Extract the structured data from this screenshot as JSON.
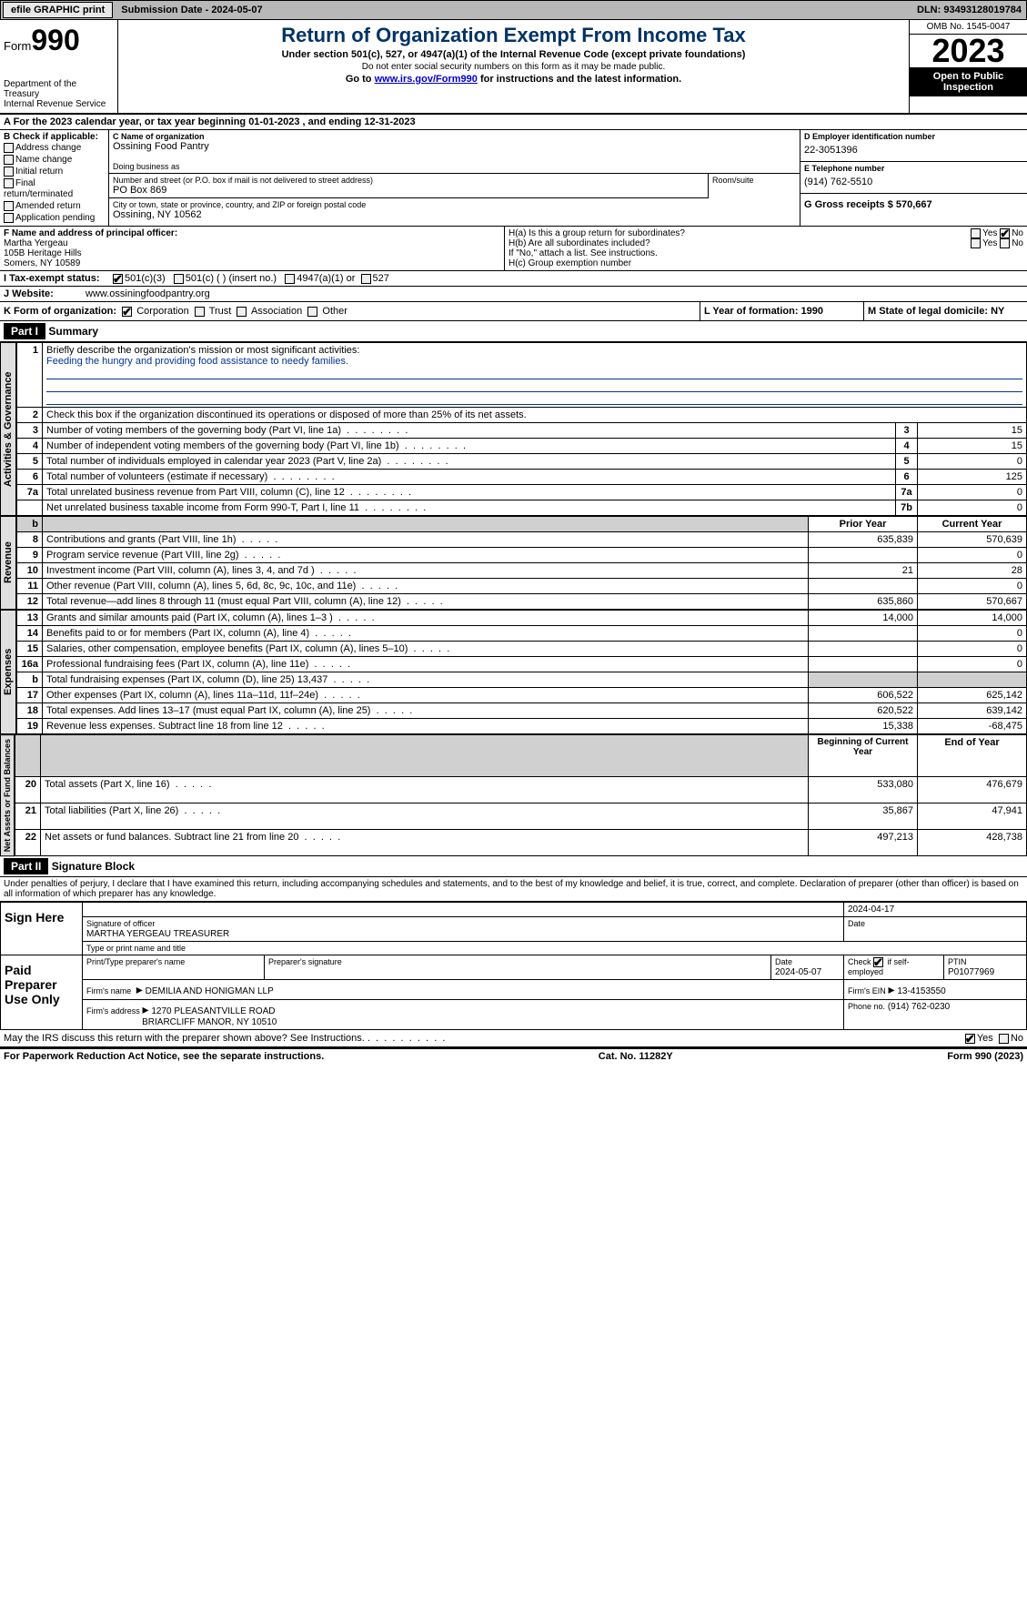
{
  "topbar": {
    "efile": "efile GRAPHIC print",
    "submission": "Submission Date - 2024-05-07",
    "dln": "DLN: 93493128019784"
  },
  "header": {
    "form_prefix": "Form",
    "form_num": "990",
    "dept": "Department of the Treasury",
    "irs": "Internal Revenue Service",
    "title": "Return of Organization Exempt From Income Tax",
    "sub1": "Under section 501(c), 527, or 4947(a)(1) of the Internal Revenue Code (except private foundations)",
    "sub2": "Do not enter social security numbers on this form as it may be made public.",
    "sub3_pre": "Go to ",
    "sub3_link": "www.irs.gov/Form990",
    "sub3_post": " for instructions and the latest information.",
    "omb": "OMB No. 1545-0047",
    "year": "2023",
    "inspect1": "Open to Public",
    "inspect2": "Inspection"
  },
  "line_a": "A For the 2023 calendar year, or tax year beginning 01-01-2023   , and ending 12-31-2023",
  "section_b": {
    "title": "B Check if applicable:",
    "items": [
      "Address change",
      "Name change",
      "Initial return",
      "Final return/terminated",
      "Amended return",
      "Application pending"
    ]
  },
  "section_c": {
    "name_label": "C Name of organization",
    "name": "Ossining Food Pantry",
    "dba_label": "Doing business as",
    "dba": "",
    "addr_label": "Number and street (or P.O. box if mail is not delivered to street address)",
    "addr": "PO Box 869",
    "room_label": "Room/suite",
    "city_label": "City or town, state or province, country, and ZIP or foreign postal code",
    "city": "Ossining, NY  10562"
  },
  "section_d": {
    "label": "D Employer identification number",
    "val": "22-3051396"
  },
  "section_e": {
    "label": "E Telephone number",
    "val": "(914) 762-5510"
  },
  "section_g": {
    "label": "G Gross receipts $ 570,667"
  },
  "section_f": {
    "label": "F  Name and address of principal officer:",
    "name": "Martha Yergeau",
    "addr1": "105B Heritage Hills",
    "addr2": "Somers, NY  10589"
  },
  "section_h": {
    "ha": "H(a)  Is this a group return for subordinates?",
    "hb": "H(b)  Are all subordinates included?",
    "hb_note": "If \"No,\" attach a list. See instructions.",
    "hc": "H(c)  Group exemption number",
    "yes": "Yes",
    "no": "No"
  },
  "section_i": {
    "label": "I  Tax-exempt status:",
    "opt1": "501(c)(3)",
    "opt2": "501(c) (  ) (insert no.)",
    "opt3": "4947(a)(1) or",
    "opt4": "527"
  },
  "section_j": {
    "label": "J  Website:",
    "val": "www.ossiningfoodpantry.org"
  },
  "section_k": {
    "label": "K Form of organization:",
    "opts": [
      "Corporation",
      "Trust",
      "Association",
      "Other"
    ]
  },
  "section_l": {
    "label": "L Year of formation: 1990"
  },
  "section_m": {
    "label": "M State of legal domicile: NY"
  },
  "part1": {
    "header": "Part I",
    "title": "Summary",
    "line1_label": "Briefly describe the organization's mission or most significant activities:",
    "line1_val": "Feeding the hungry and providing food assistance to needy families.",
    "line2": "Check this box      if the organization discontinued its operations or disposed of more than 25% of its net assets.",
    "rows_gov": [
      {
        "n": "3",
        "t": "Number of voting members of the governing body (Part VI, line 1a)",
        "l": "3",
        "v": "15"
      },
      {
        "n": "4",
        "t": "Number of independent voting members of the governing body (Part VI, line 1b)",
        "l": "4",
        "v": "15"
      },
      {
        "n": "5",
        "t": "Total number of individuals employed in calendar year 2023 (Part V, line 2a)",
        "l": "5",
        "v": "0"
      },
      {
        "n": "6",
        "t": "Total number of volunteers (estimate if necessary)",
        "l": "6",
        "v": "125"
      },
      {
        "n": "7a",
        "t": "Total unrelated business revenue from Part VIII, column (C), line 12",
        "l": "7a",
        "v": "0"
      },
      {
        "n": "",
        "t": "Net unrelated business taxable income from Form 990-T, Part I, line 11",
        "l": "7b",
        "v": "0"
      }
    ],
    "col_prior": "Prior Year",
    "col_current": "Current Year",
    "rows_rev": [
      {
        "n": "8",
        "t": "Contributions and grants (Part VIII, line 1h)",
        "p": "635,839",
        "c": "570,639"
      },
      {
        "n": "9",
        "t": "Program service revenue (Part VIII, line 2g)",
        "p": "",
        "c": "0"
      },
      {
        "n": "10",
        "t": "Investment income (Part VIII, column (A), lines 3, 4, and 7d )",
        "p": "21",
        "c": "28"
      },
      {
        "n": "11",
        "t": "Other revenue (Part VIII, column (A), lines 5, 6d, 8c, 9c, 10c, and 11e)",
        "p": "",
        "c": "0"
      },
      {
        "n": "12",
        "t": "Total revenue—add lines 8 through 11 (must equal Part VIII, column (A), line 12)",
        "p": "635,860",
        "c": "570,667"
      }
    ],
    "rows_exp": [
      {
        "n": "13",
        "t": "Grants and similar amounts paid (Part IX, column (A), lines 1–3 )",
        "p": "14,000",
        "c": "14,000"
      },
      {
        "n": "14",
        "t": "Benefits paid to or for members (Part IX, column (A), line 4)",
        "p": "",
        "c": "0"
      },
      {
        "n": "15",
        "t": "Salaries, other compensation, employee benefits (Part IX, column (A), lines 5–10)",
        "p": "",
        "c": "0"
      },
      {
        "n": "16a",
        "t": "Professional fundraising fees (Part IX, column (A), line 11e)",
        "p": "",
        "c": "0"
      },
      {
        "n": "b",
        "t": "Total fundraising expenses (Part IX, column (D), line 25) 13,437",
        "p": "SHADED",
        "c": "SHADED"
      },
      {
        "n": "17",
        "t": "Other expenses (Part IX, column (A), lines 11a–11d, 11f–24e)",
        "p": "606,522",
        "c": "625,142"
      },
      {
        "n": "18",
        "t": "Total expenses. Add lines 13–17 (must equal Part IX, column (A), line 25)",
        "p": "620,522",
        "c": "639,142"
      },
      {
        "n": "19",
        "t": "Revenue less expenses. Subtract line 18 from line 12",
        "p": "15,338",
        "c": "-68,475"
      }
    ],
    "col_begin": "Beginning of Current Year",
    "col_end": "End of Year",
    "rows_net": [
      {
        "n": "20",
        "t": "Total assets (Part X, line 16)",
        "p": "533,080",
        "c": "476,679"
      },
      {
        "n": "21",
        "t": "Total liabilities (Part X, line 26)",
        "p": "35,867",
        "c": "47,941"
      },
      {
        "n": "22",
        "t": "Net assets or fund balances. Subtract line 21 from line 20",
        "p": "497,213",
        "c": "428,738"
      }
    ],
    "vlabels": [
      "Activities & Governance",
      "Revenue",
      "Expenses",
      "Net Assets or Fund Balances"
    ]
  },
  "part2": {
    "header": "Part II",
    "title": "Signature Block",
    "declaration": "Under penalties of perjury, I declare that I have examined this return, including accompanying schedules and statements, and to the best of my knowledge and belief, it is true, correct, and complete. Declaration of preparer (other than officer) is based on all information of which preparer has any knowledge.",
    "sign_here": "Sign Here",
    "sig_date": "2024-04-17",
    "sig_officer": "Signature of officer",
    "sig_name": "MARTHA YERGEAU  TREASURER",
    "sig_type": "Type or print name and title",
    "date_label": "Date",
    "paid_prep": "Paid Preparer Use Only",
    "prep_name_label": "Print/Type preparer's name",
    "prep_sig_label": "Preparer's signature",
    "prep_date_label": "Date",
    "prep_date": "2024-05-07",
    "check_self": "Check         if self-employed",
    "ptin_label": "PTIN",
    "ptin": "P01077969",
    "firm_name_label": "Firm's name",
    "firm_name": "DEMILIA AND HONIGMAN LLP",
    "firm_ein_label": "Firm's EIN",
    "firm_ein": "13-4153550",
    "firm_addr_label": "Firm's address",
    "firm_addr1": "1270 PLEASANTVILLE ROAD",
    "firm_addr2": "BRIARCLIFF MANOR, NY  10510",
    "phone_label": "Phone no.",
    "phone": "(914) 762-0230",
    "discuss": "May the IRS discuss this return with the preparer shown above? See Instructions.",
    "yes": "Yes",
    "no": "No"
  },
  "footer": {
    "left": "For Paperwork Reduction Act Notice, see the separate instructions.",
    "mid": "Cat. No. 11282Y",
    "right_pre": "Form ",
    "right_form": "990",
    "right_post": " (2023)"
  }
}
